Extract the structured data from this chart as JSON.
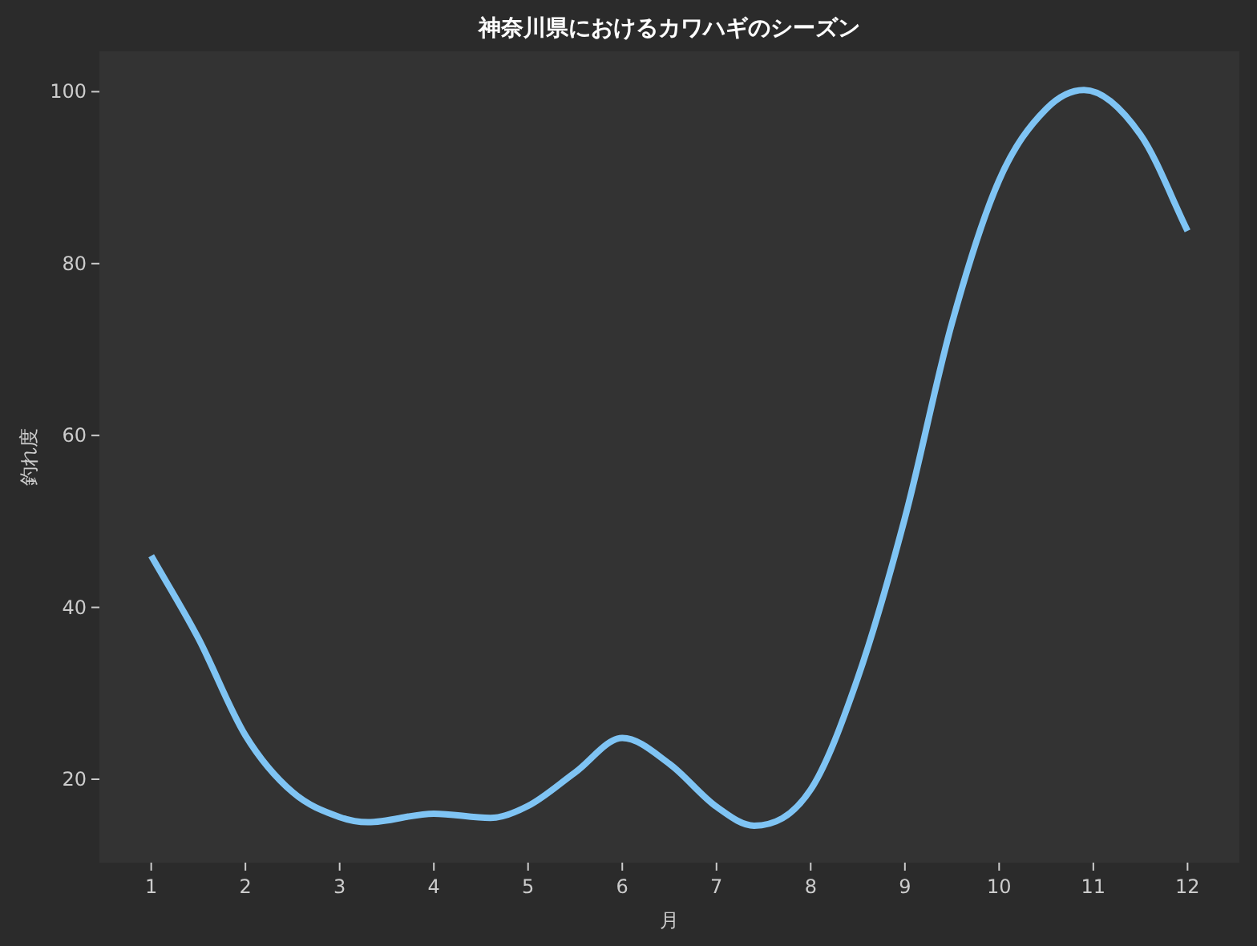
{
  "chart_data": {
    "type": "line",
    "title": "神奈川県におけるカワハギのシーズン",
    "xlabel": "月",
    "ylabel": "釣れ度",
    "x": [
      1,
      1.5,
      2,
      2.5,
      3,
      3.3,
      4,
      4.6,
      5,
      5.5,
      6,
      6.5,
      7,
      7.4,
      8,
      8.5,
      9,
      9.5,
      10,
      10.5,
      10.9,
      11.5,
      12
    ],
    "series": [
      {
        "color": "#7fc4f4",
        "values": [
          46,
          36.4,
          25.1,
          18.5,
          15.6,
          15.0,
          16.0,
          15.5,
          16.9,
          20.8,
          24.8,
          21.8,
          16.8,
          14.6,
          18.8,
          31.8,
          50.4,
          73.1,
          89.7,
          98.0,
          100.2,
          95.0,
          83.8
        ]
      }
    ],
    "xlim": [
      0.45,
      12.55
    ],
    "ylim": [
      10.3,
      104.7
    ],
    "xticks": [
      1,
      2,
      3,
      4,
      5,
      6,
      7,
      8,
      9,
      10,
      11,
      12
    ],
    "yticks": [
      20,
      40,
      60,
      80,
      100
    ],
    "grid": false,
    "marker": "none",
    "line_style": "solid"
  }
}
